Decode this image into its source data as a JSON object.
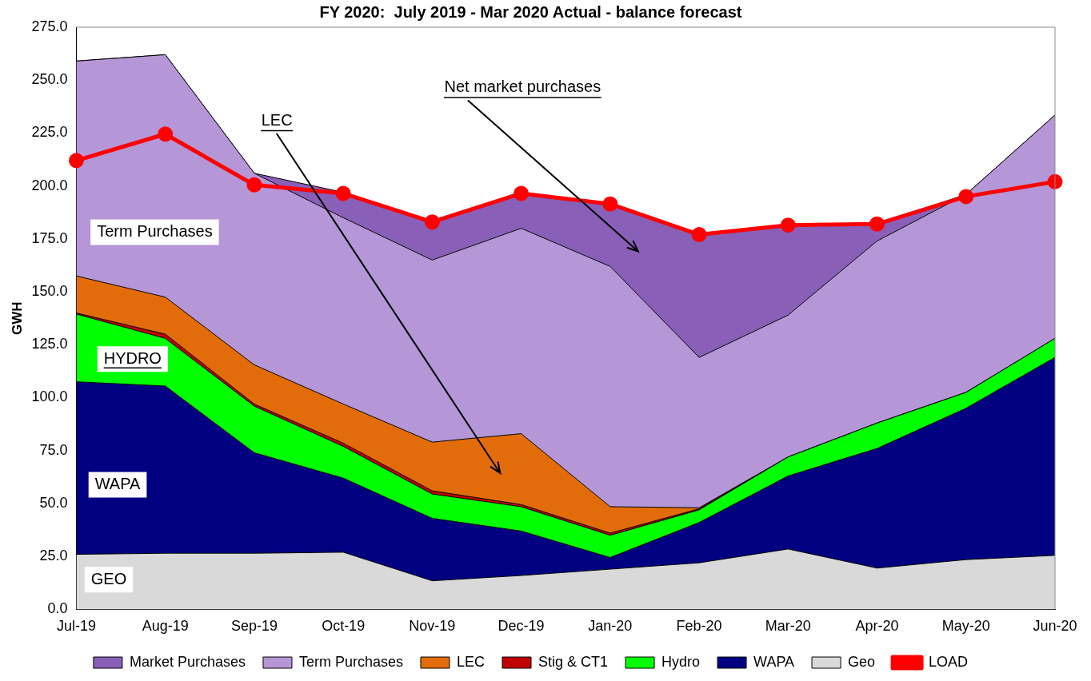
{
  "chart_data": {
    "type": "area",
    "stacked": true,
    "title": "FY 2020:  July 2019 - Mar 2020 Actual - balance forecast",
    "ylabel": "GWH",
    "categories": [
      "Jul-19",
      "Aug-19",
      "Sep-19",
      "Oct-19",
      "Nov-19",
      "Dec-19",
      "Jan-20",
      "Feb-20",
      "Mar-20",
      "Apr-20",
      "May-20",
      "Jun-20"
    ],
    "series": [
      {
        "name": "Geo",
        "color": "#d9d9d9",
        "values": [
          26,
          26.5,
          26.5,
          27,
          13.5,
          16,
          19,
          22,
          28.5,
          19.5,
          23.5,
          25.5
        ]
      },
      {
        "name": "WAPA",
        "color": "#000080",
        "values": [
          81.5,
          79,
          47.5,
          35,
          29.5,
          21,
          5.5,
          19,
          34.5,
          56.5,
          71.5,
          93.5
        ]
      },
      {
        "name": "Hydro",
        "color": "#00ff00",
        "values": [
          32,
          22.5,
          22,
          15,
          11.5,
          11.5,
          10.5,
          6,
          9,
          12,
          7.5,
          9
        ]
      },
      {
        "name": "Stig & CT1",
        "color": "#c00000",
        "values": [
          0.5,
          2,
          1,
          1.5,
          1.5,
          1,
          1,
          0.5,
          0,
          0,
          0,
          0
        ]
      },
      {
        "name": "LEC",
        "color": "#e36c0a",
        "values": [
          17.5,
          17.5,
          18.5,
          18.5,
          23,
          33.5,
          12.5,
          0.5,
          0,
          0,
          0,
          0
        ]
      },
      {
        "name": "Term Purchases",
        "color": "#b596d6",
        "values": [
          101.5,
          114.5,
          90.5,
          88,
          86,
          97,
          113.5,
          71,
          67,
          86,
          93.5,
          105.5
        ]
      },
      {
        "name": "Market Purchases",
        "color": "#8a5fb8",
        "values": [
          0,
          0,
          0,
          12,
          18,
          16.5,
          29.5,
          58,
          42.5,
          8,
          0,
          0
        ]
      },
      {
        "name": "LOAD",
        "type": "line",
        "color": "#ff0000",
        "marker": "circle",
        "values": [
          212,
          224.5,
          200.5,
          196.5,
          183,
          196.5,
          191.5,
          177,
          181.5,
          182,
          195,
          202
        ]
      }
    ],
    "ylim": [
      0,
      275
    ],
    "yticks": [
      {
        "value": 0,
        "label": "0.0"
      },
      {
        "value": 25,
        "label": "25.0"
      },
      {
        "value": 50,
        "label": "50.0"
      },
      {
        "value": 75,
        "label": "75.0"
      },
      {
        "value": 100,
        "label": "100.0"
      },
      {
        "value": 125,
        "label": "125.0"
      },
      {
        "value": 150,
        "label": "150.0"
      },
      {
        "value": 175,
        "label": "175.0"
      },
      {
        "value": 200,
        "label": "200.0"
      },
      {
        "value": 225,
        "label": "225.0"
      },
      {
        "value": 250,
        "label": "250.0"
      },
      {
        "value": 275,
        "label": "275.0"
      }
    ],
    "legend": "bottom",
    "annotations": [
      "Net market purchases",
      "LEC",
      "Term Purchases",
      "HYDRO",
      "WAPA",
      "GEO"
    ]
  }
}
